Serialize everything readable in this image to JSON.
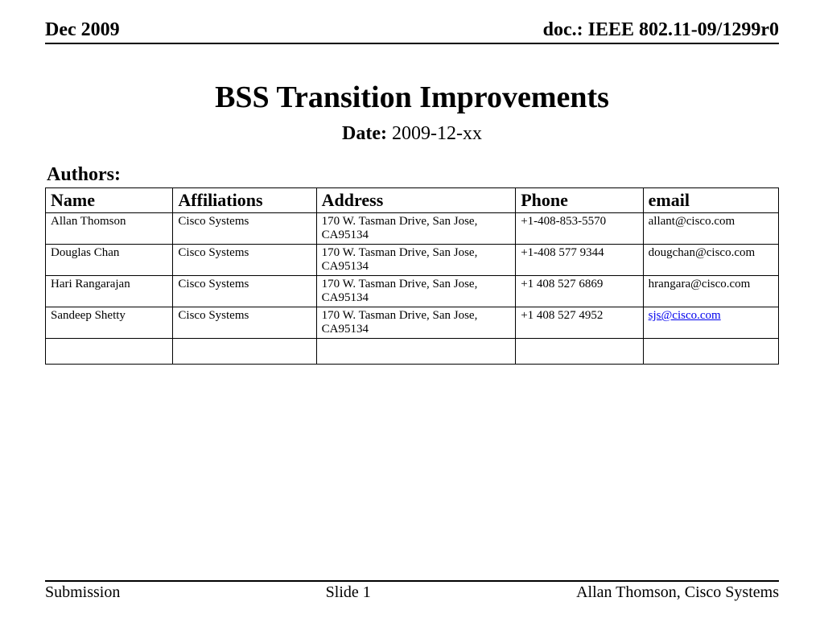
{
  "header": {
    "left": "Dec 2009",
    "right": "doc.: IEEE 802.11-09/1299r0"
  },
  "title": "BSS Transition Improvements",
  "date": {
    "label": "Date:",
    "value": "2009-12-xx"
  },
  "authors_label": "Authors:",
  "table": {
    "columns": [
      "Name",
      "Affiliations",
      "Address",
      "Phone",
      "email"
    ],
    "rows": [
      {
        "name": "Allan Thomson",
        "affiliation": "Cisco Systems",
        "address": "170 W. Tasman Drive, San Jose, CA95134",
        "phone": "+1-408-853-5570",
        "email": "allant@cisco.com",
        "email_is_link": false
      },
      {
        "name": "Douglas Chan",
        "affiliation": "Cisco Systems",
        "address": "170 W. Tasman Drive, San Jose, CA95134",
        "phone": "+1-408 577 9344",
        "email": "dougchan@cisco.com",
        "email_is_link": false
      },
      {
        "name": "Hari Rangarajan",
        "affiliation": "Cisco Systems",
        "address": "170 W. Tasman Drive, San Jose, CA95134",
        "phone": "+1 408 527 6869",
        "email": "hrangara@cisco.com",
        "email_is_link": false
      },
      {
        "name": "Sandeep Shetty",
        "affiliation": "Cisco Systems",
        "address": "170 W. Tasman Drive, San Jose, CA95134",
        "phone": "+1 408 527 4952",
        "email": "sjs@cisco.com",
        "email_is_link": true
      }
    ]
  },
  "footer": {
    "left": "Submission",
    "center": "Slide 1",
    "right": "Allan Thomson, Cisco Systems"
  }
}
